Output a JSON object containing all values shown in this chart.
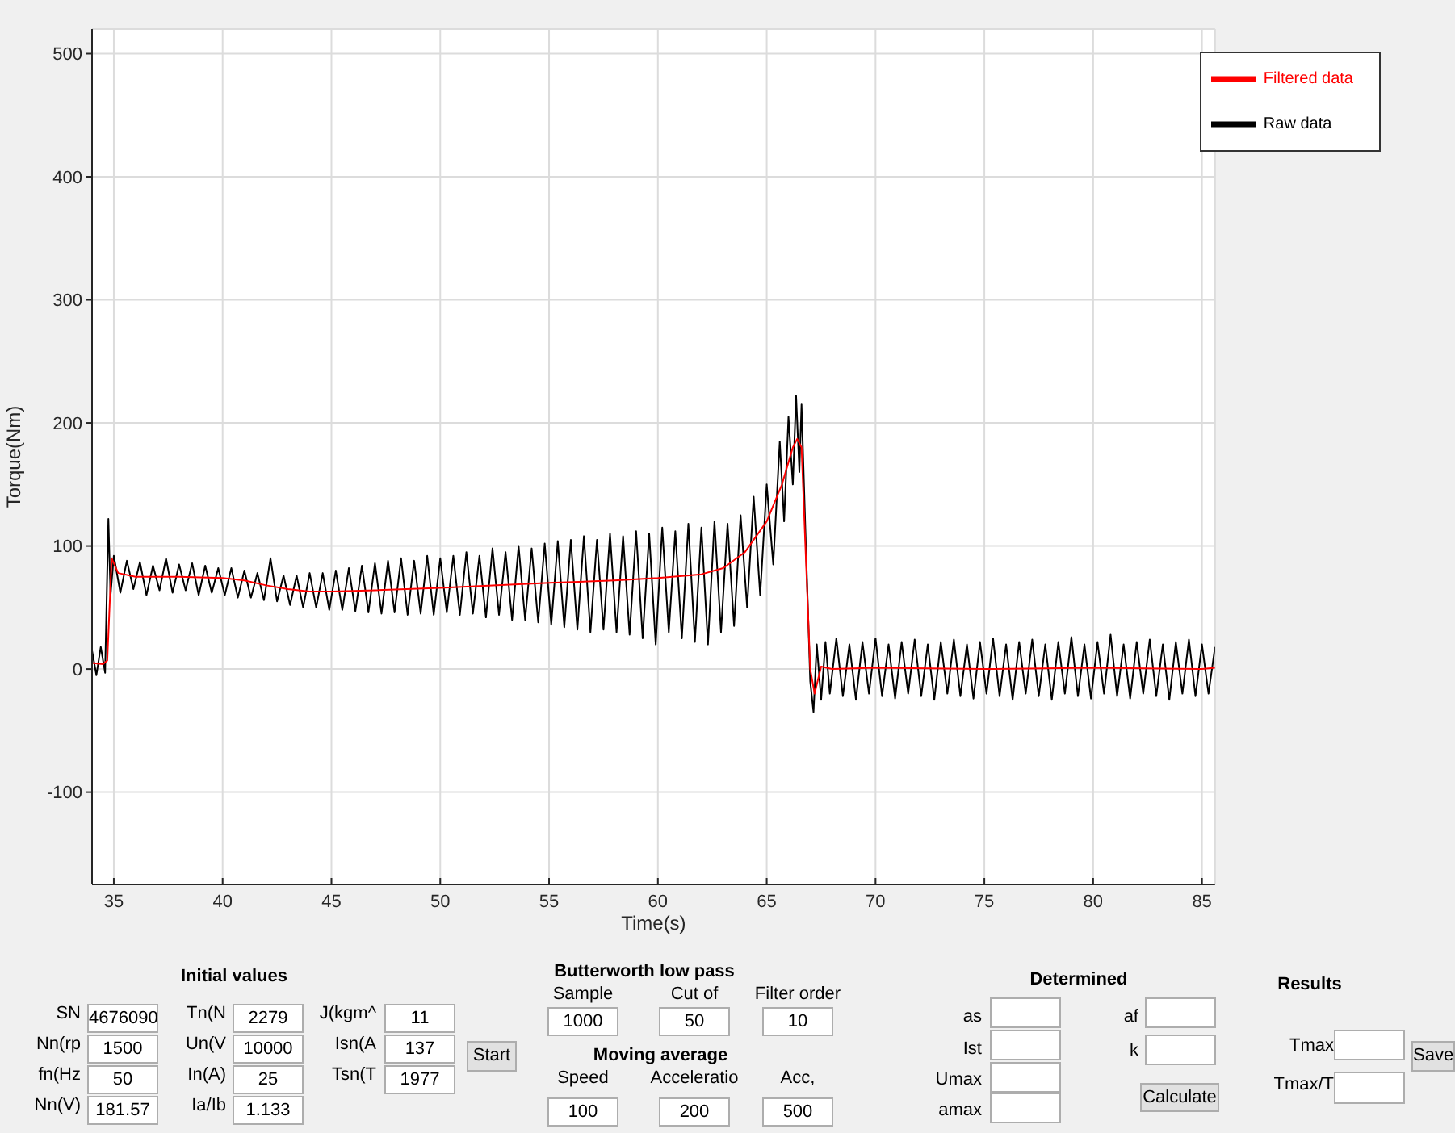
{
  "chart_data": [
    {
      "type": "line",
      "xlabel": "Time(s)",
      "ylabel": "Torque(Nm)",
      "xlim": [
        34,
        85.6
      ],
      "ylim": [
        -175,
        520
      ],
      "xticks": [
        35,
        40,
        45,
        50,
        55,
        60,
        65,
        70,
        75,
        80,
        85
      ],
      "yticks": [
        -100,
        0,
        100,
        200,
        300,
        400,
        500
      ],
      "grid": true,
      "legend": "top right",
      "series": [
        {
          "name": "Raw data",
          "color": "#000000",
          "x": [
            34.0,
            34.2,
            34.4,
            34.6,
            34.75,
            34.85,
            35.0,
            35.3,
            35.6,
            35.9,
            36.2,
            36.5,
            36.8,
            37.1,
            37.4,
            37.7,
            38.0,
            38.3,
            38.6,
            38.9,
            39.2,
            39.5,
            39.8,
            40.1,
            40.4,
            40.7,
            41.0,
            41.3,
            41.6,
            41.9,
            42.2,
            42.5,
            42.8,
            43.1,
            43.4,
            43.7,
            44.0,
            44.3,
            44.6,
            44.9,
            45.2,
            45.5,
            45.8,
            46.1,
            46.4,
            46.7,
            47.0,
            47.3,
            47.6,
            47.9,
            48.2,
            48.5,
            48.8,
            49.1,
            49.4,
            49.7,
            50.0,
            50.3,
            50.6,
            50.9,
            51.2,
            51.5,
            51.8,
            52.1,
            52.4,
            52.7,
            53.0,
            53.3,
            53.6,
            53.9,
            54.2,
            54.5,
            54.8,
            55.1,
            55.4,
            55.7,
            56.0,
            56.3,
            56.6,
            56.9,
            57.2,
            57.5,
            57.8,
            58.1,
            58.4,
            58.7,
            59.0,
            59.3,
            59.6,
            59.9,
            60.2,
            60.5,
            60.8,
            61.1,
            61.4,
            61.7,
            62.0,
            62.3,
            62.6,
            62.9,
            63.2,
            63.5,
            63.8,
            64.1,
            64.4,
            64.7,
            65.0,
            65.3,
            65.6,
            65.8,
            66.0,
            66.2,
            66.35,
            66.5,
            66.6,
            66.8,
            67.0,
            67.15,
            67.3,
            67.5,
            67.7,
            67.9,
            68.2,
            68.5,
            68.8,
            69.1,
            69.4,
            69.7,
            70.0,
            70.3,
            70.6,
            70.9,
            71.2,
            71.5,
            71.8,
            72.1,
            72.4,
            72.7,
            73.0,
            73.3,
            73.6,
            73.9,
            74.2,
            74.5,
            74.8,
            75.1,
            75.4,
            75.7,
            76.0,
            76.3,
            76.6,
            76.9,
            77.2,
            77.5,
            77.8,
            78.1,
            78.4,
            78.7,
            79.0,
            79.3,
            79.6,
            79.9,
            80.2,
            80.5,
            80.8,
            81.1,
            81.4,
            81.7,
            82.0,
            82.3,
            82.6,
            82.9,
            83.2,
            83.5,
            83.8,
            84.1,
            84.4,
            84.7,
            85.0,
            85.3,
            85.6
          ],
          "values": [
            15,
            -5,
            18,
            -3,
            122,
            60,
            92,
            62,
            88,
            65,
            87,
            60,
            84,
            64,
            90,
            62,
            85,
            64,
            86,
            60,
            84,
            62,
            82,
            60,
            82,
            58,
            80,
            58,
            78,
            56,
            90,
            55,
            76,
            52,
            76,
            50,
            78,
            50,
            78,
            48,
            80,
            48,
            82,
            47,
            84,
            46,
            86,
            45,
            88,
            46,
            90,
            44,
            88,
            45,
            92,
            44,
            90,
            46,
            92,
            44,
            95,
            45,
            92,
            42,
            98,
            44,
            95,
            40,
            100,
            40,
            98,
            38,
            102,
            36,
            104,
            34,
            105,
            32,
            108,
            30,
            105,
            32,
            110,
            30,
            108,
            28,
            112,
            25,
            110,
            20,
            115,
            30,
            112,
            25,
            118,
            22,
            115,
            20,
            120,
            30,
            118,
            35,
            125,
            50,
            140,
            60,
            150,
            85,
            185,
            120,
            205,
            150,
            222,
            160,
            215,
            100,
            -10,
            -35,
            20,
            -25,
            22,
            -20,
            25,
            -22,
            20,
            -25,
            22,
            -20,
            25,
            -22,
            20,
            -24,
            22,
            -20,
            24,
            -22,
            20,
            -25,
            22,
            -20,
            24,
            -22,
            20,
            -24,
            22,
            -20,
            25,
            -22,
            20,
            -25,
            22,
            -20,
            24,
            -22,
            20,
            -25,
            22,
            -20,
            26,
            -22,
            20,
            -24,
            22,
            -20,
            28,
            -22,
            20,
            -24,
            22,
            -20,
            24,
            -22,
            20,
            -25,
            22,
            -20,
            24,
            -22,
            20,
            -20,
            18
          ]
        },
        {
          "name": "Filtered data",
          "color": "#ff0000",
          "x": [
            34.0,
            34.5,
            34.7,
            34.9,
            35.2,
            36,
            38,
            40,
            41,
            42,
            43,
            44,
            45,
            47,
            50,
            55,
            58,
            60,
            62,
            63,
            64,
            65,
            65.7,
            66.2,
            66.4,
            66.6,
            67.0,
            67.2,
            67.5,
            68,
            70,
            75,
            80,
            85,
            85.6
          ],
          "values": [
            5,
            4,
            7,
            90,
            78,
            75,
            75,
            74,
            72,
            68,
            65,
            63,
            63,
            64,
            66,
            70,
            72,
            74,
            77,
            82,
            95,
            120,
            150,
            180,
            187,
            180,
            0,
            -20,
            2,
            0,
            1,
            0,
            1,
            0,
            1
          ]
        }
      ]
    },
    {
      "type": "other",
      "title": "Initial values",
      "annotations": [
        "SN",
        "4676090",
        "Nn(rp",
        "1500",
        "fn(Hz",
        "50",
        "Nn(V)",
        "181.57",
        "Tn(N",
        "2279",
        "Un(V",
        "10000",
        "In(A)",
        "25",
        "Ia/Ib",
        "1.133",
        "J(kgm^",
        "11",
        "Isn(A",
        "137",
        "Tsn(T",
        "1977",
        "Start"
      ]
    },
    {
      "type": "other",
      "title": "Butterworth low pass",
      "annotations": [
        "Sample",
        "1000",
        "Cut of",
        "50",
        "Filter order",
        "10"
      ]
    },
    {
      "type": "other",
      "title": "Moving average",
      "annotations": [
        "Speed",
        "100",
        "Acceleratio",
        "200",
        "Acc,",
        "500"
      ]
    },
    {
      "type": "other",
      "title": "Determined",
      "annotations": [
        "as",
        "Ist",
        "Umax",
        "amax",
        "af",
        "k",
        "Calculate"
      ]
    },
    {
      "type": "other",
      "title": "Results",
      "annotations": [
        "Tmax",
        "Tmax/T",
        "Save"
      ]
    }
  ]
}
